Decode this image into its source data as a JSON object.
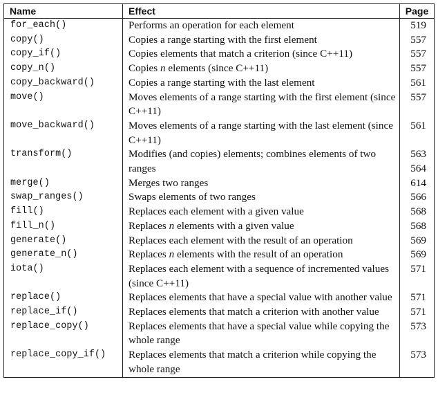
{
  "table": {
    "headers": {
      "name": "Name",
      "effect": "Effect",
      "page": "Page"
    },
    "rows": [
      {
        "name": "for_each()",
        "effect": "Performs an operation for each element",
        "pages": [
          "519"
        ]
      },
      {
        "name": "copy()",
        "effect": "Copies a range starting with the first element",
        "pages": [
          "557"
        ]
      },
      {
        "name": "copy_if()",
        "effect": "Copies elements that match a criterion (since C++11)",
        "pages": [
          "557"
        ]
      },
      {
        "name": "copy_n()",
        "effect_parts": [
          "Copies ",
          "n",
          " elements (since C++11)"
        ],
        "pages": [
          "557"
        ]
      },
      {
        "name": "copy_backward()",
        "effect": "Copies a range starting with the last element",
        "pages": [
          "561"
        ]
      },
      {
        "name": "move()",
        "effect": "Moves elements of a range starting with the first element (since C++11)",
        "pages": [
          "557"
        ]
      },
      {
        "name": "move_backward()",
        "effect": "Moves elements of a range starting with the last element (since C++11)",
        "pages": [
          "561"
        ]
      },
      {
        "name": "transform()",
        "effect": "Modifies (and copies) elements; combines elements of two ranges",
        "pages": [
          "563",
          "564"
        ]
      },
      {
        "name": "merge()",
        "effect": "Merges two ranges",
        "pages": [
          "614"
        ]
      },
      {
        "name": "swap_ranges()",
        "effect": "Swaps elements of two ranges",
        "pages": [
          "566"
        ]
      },
      {
        "name": "fill()",
        "effect": "Replaces each element with a given value",
        "pages": [
          "568"
        ]
      },
      {
        "name": "fill_n()",
        "effect_parts": [
          "Replaces ",
          "n",
          " elements with a given value"
        ],
        "pages": [
          "568"
        ]
      },
      {
        "name": "generate()",
        "effect": "Replaces each element with the result of an operation",
        "pages": [
          "569"
        ]
      },
      {
        "name": "generate_n()",
        "effect_parts": [
          "Replaces ",
          "n",
          " elements with the result of an operation"
        ],
        "pages": [
          "569"
        ]
      },
      {
        "name": "iota()",
        "effect": "Replaces each element with a sequence of incremented values (since C++11)",
        "pages": [
          "571"
        ]
      },
      {
        "name": "replace()",
        "effect": "Replaces elements that have a special value with another value",
        "pages": [
          "571"
        ]
      },
      {
        "name": "replace_if()",
        "effect": "Replaces elements that match a criterion with another value",
        "pages": [
          "571"
        ]
      },
      {
        "name": "replace_copy()",
        "effect": "Replaces elements that have a special value while copying the whole range",
        "pages": [
          "573"
        ]
      },
      {
        "name": "replace_copy_if()",
        "effect": "Replaces elements that match a criterion while copying the whole range",
        "pages": [
          "573"
        ]
      }
    ]
  }
}
